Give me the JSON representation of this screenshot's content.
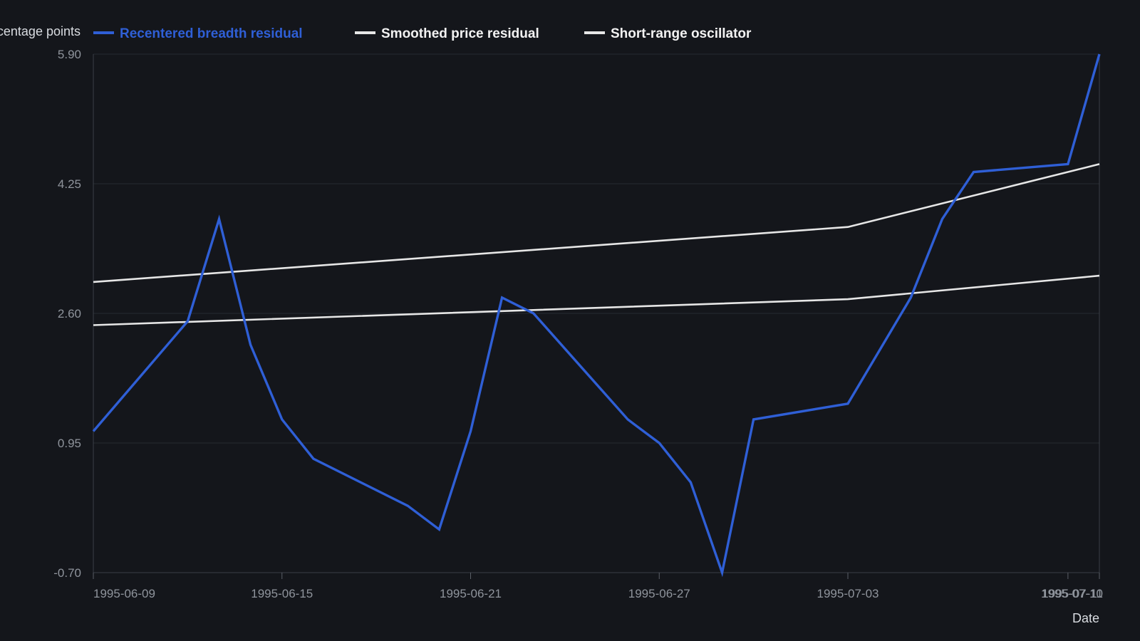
{
  "chart_data": {
    "type": "line",
    "title": "",
    "xlabel": "Date",
    "ylabel": "Percentage points",
    "ylim": [
      -0.7,
      5.9
    ],
    "xlim": [
      "1995-06-09",
      "1995-07-11"
    ],
    "yticks": [
      "5.90",
      "4.25",
      "2.60",
      "0.95",
      "-0.70"
    ],
    "xticks": [
      "1995-06-09",
      "1995-06-15",
      "1995-06-21",
      "1995-06-27",
      "1995-07-03",
      "1995-07-10",
      "1995-07-11"
    ],
    "grid": "horizontal",
    "legend": "top",
    "series": [
      {
        "name": "Recentered breadth residual",
        "color": "#2f5fd6",
        "points": [
          [
            "1995-06-09",
            1.1
          ],
          [
            "1995-06-12",
            2.5
          ],
          [
            "1995-06-13",
            3.8
          ],
          [
            "1995-06-14",
            2.2
          ],
          [
            "1995-06-15",
            1.25
          ],
          [
            "1995-06-16",
            0.75
          ],
          [
            "1995-06-19",
            0.15
          ],
          [
            "1995-06-20",
            -0.15
          ],
          [
            "1995-06-21",
            1.1
          ],
          [
            "1995-06-22",
            2.8
          ],
          [
            "1995-06-23",
            2.6
          ],
          [
            "1995-06-26",
            1.25
          ],
          [
            "1995-06-27",
            0.95
          ],
          [
            "1995-06-28",
            0.45
          ],
          [
            "1995-06-29",
            -0.7
          ],
          [
            "1995-06-30",
            1.25
          ],
          [
            "1995-07-03",
            1.45
          ],
          [
            "1995-07-05",
            2.8
          ],
          [
            "1995-07-06",
            3.8
          ],
          [
            "1995-07-07",
            4.4
          ],
          [
            "1995-07-10",
            4.5
          ],
          [
            "1995-07-11",
            5.9
          ]
        ]
      },
      {
        "name": "Smoothed price residual",
        "color": "#e6e6e6",
        "points": [
          [
            "1995-06-09",
            3.0
          ],
          [
            "1995-07-03",
            3.7
          ],
          [
            "1995-07-11",
            4.5
          ]
        ]
      },
      {
        "name": "Short-range oscillator",
        "color": "#e6e6e6",
        "points": [
          [
            "1995-06-09",
            2.45
          ],
          [
            "1995-07-03",
            2.78
          ],
          [
            "1995-07-11",
            3.08
          ]
        ]
      }
    ]
  }
}
